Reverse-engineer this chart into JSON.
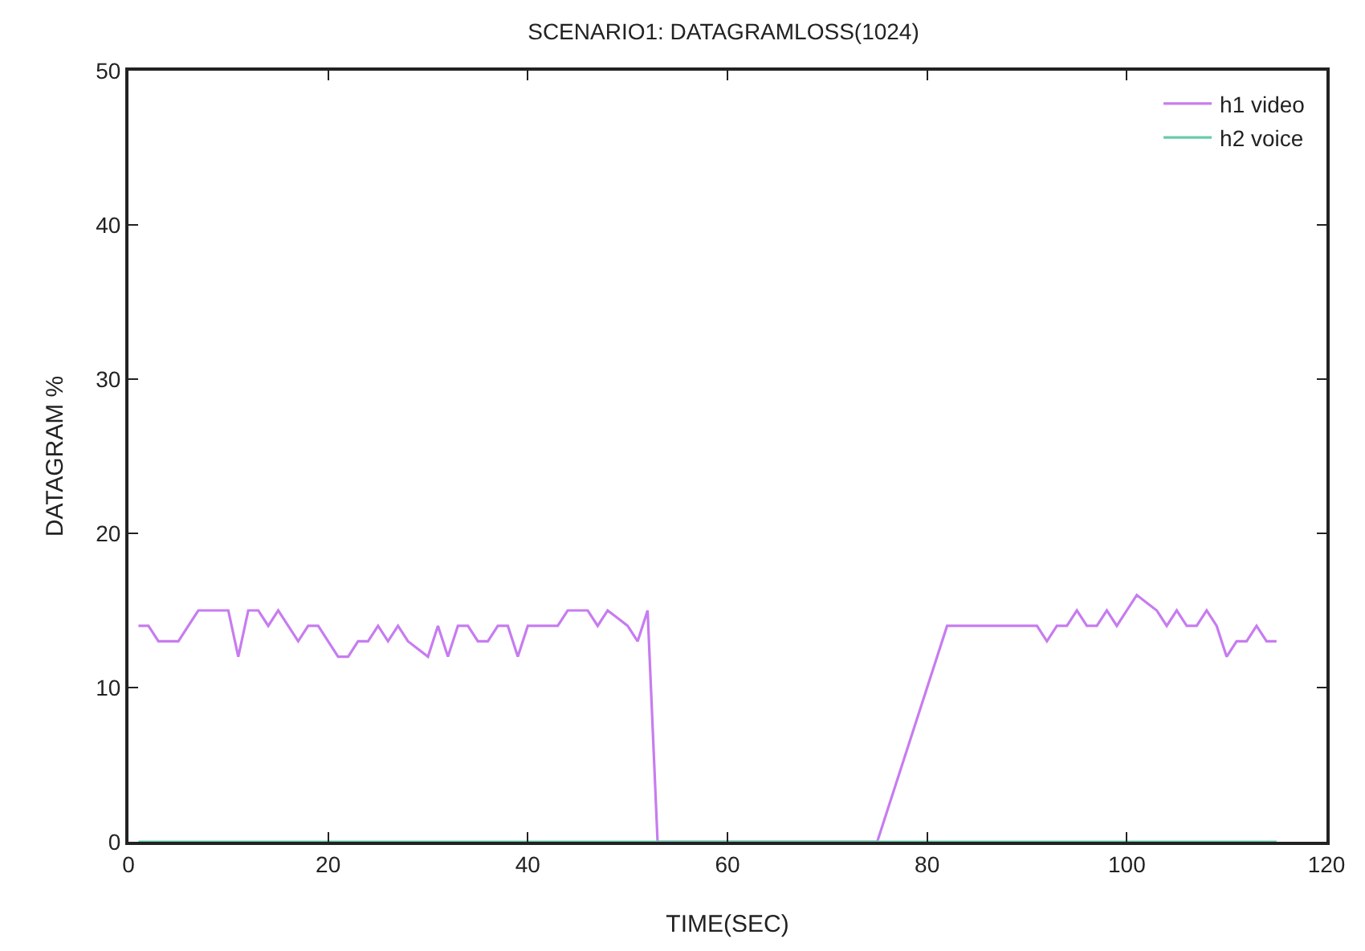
{
  "chart_data": {
    "type": "line",
    "title": "SCENARIO1: DATAGRAMLOSS(1024)",
    "xlabel": "TIME(SEC)",
    "ylabel": "DATAGRAM %",
    "xlim": [
      0,
      120
    ],
    "xticks": [
      0,
      20,
      40,
      60,
      80,
      100,
      120
    ],
    "ylim": [
      0,
      50
    ],
    "yticks": [
      0,
      10,
      20,
      30,
      40,
      50
    ],
    "grid": false,
    "legend": "top right",
    "marker": "none",
    "line_style": "solid",
    "series": [
      {
        "name": "h1 video",
        "color": "#c77cf0",
        "x": [
          1,
          2,
          3,
          4,
          5,
          6,
          7,
          8,
          9,
          10,
          11,
          12,
          13,
          14,
          15,
          16,
          17,
          18,
          19,
          20,
          21,
          22,
          23,
          24,
          25,
          26,
          27,
          28,
          29,
          30,
          31,
          32,
          33,
          34,
          35,
          36,
          37,
          38,
          39,
          40,
          41,
          42,
          43,
          44,
          45,
          46,
          47,
          48,
          49,
          50,
          51,
          52,
          53,
          75,
          82,
          91,
          92,
          93,
          94,
          95,
          96,
          97,
          98,
          99,
          100,
          101,
          102,
          103,
          104,
          105,
          106,
          107,
          108,
          109,
          110,
          111,
          112,
          113,
          114,
          115
        ],
        "values": [
          14,
          14,
          13,
          13,
          13,
          14,
          15,
          15,
          15,
          15,
          12,
          15,
          15,
          14,
          15,
          14,
          13,
          14,
          14,
          13,
          12,
          12,
          13,
          13,
          14,
          13,
          14,
          13,
          12.5,
          12,
          14,
          12,
          14,
          14,
          13,
          13,
          14,
          14,
          12,
          14,
          14,
          14,
          14,
          15,
          15,
          15,
          14,
          15,
          14.5,
          14,
          13,
          15,
          0,
          0,
          14,
          14,
          13,
          14,
          14,
          15,
          14,
          14,
          15,
          14,
          15,
          16,
          15.5,
          15,
          14,
          15,
          14,
          14,
          15,
          14,
          12,
          13,
          13,
          14,
          13,
          13
        ]
      },
      {
        "name": "h2 voice",
        "color": "#66ccaa",
        "x": [
          1,
          115
        ],
        "values": [
          0,
          0
        ]
      }
    ]
  }
}
